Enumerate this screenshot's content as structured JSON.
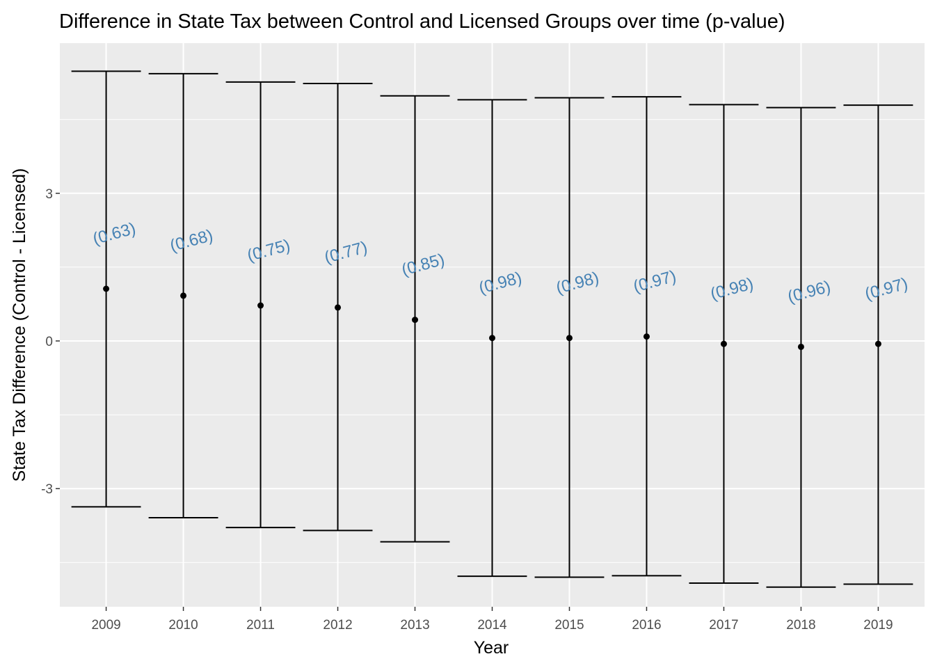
{
  "chart_data": {
    "type": "errorbar",
    "title": "Difference in State Tax between Control and Licensed Groups over time (p-value)",
    "xlabel": "Year",
    "ylabel": "State Tax Difference (Control - Licensed)",
    "categories": [
      "2009",
      "2010",
      "2011",
      "2012",
      "2013",
      "2014",
      "2015",
      "2016",
      "2017",
      "2018",
      "2019"
    ],
    "estimate": [
      1.06,
      0.92,
      0.72,
      0.68,
      0.43,
      0.06,
      0.06,
      0.09,
      -0.06,
      -0.12,
      -0.06
    ],
    "upper": [
      5.48,
      5.43,
      5.26,
      5.23,
      4.98,
      4.9,
      4.94,
      4.96,
      4.8,
      4.74,
      4.79
    ],
    "lower": [
      -3.37,
      -3.59,
      -3.79,
      -3.85,
      -4.08,
      -4.78,
      -4.8,
      -4.77,
      -4.92,
      -5.0,
      -4.94
    ],
    "pvalues": [
      "(0.63)",
      "(0.68)",
      "(0.75)",
      "(0.77)",
      "(0.85)",
      "(0.98)",
      "(0.98)",
      "(0.97)",
      "(0.98)",
      "(0.96)",
      "(0.97)"
    ],
    "yticks": [
      -3,
      0,
      3
    ],
    "yticklabels": [
      "-3",
      "0",
      "3"
    ],
    "ylim": [
      -5.4,
      6.05
    ],
    "grid": true,
    "colors": {
      "panel": "#ebebeb",
      "grid": "#ffffff",
      "bars": "#000000",
      "points": "#000000",
      "pvalue_text": "#4682b4"
    }
  }
}
